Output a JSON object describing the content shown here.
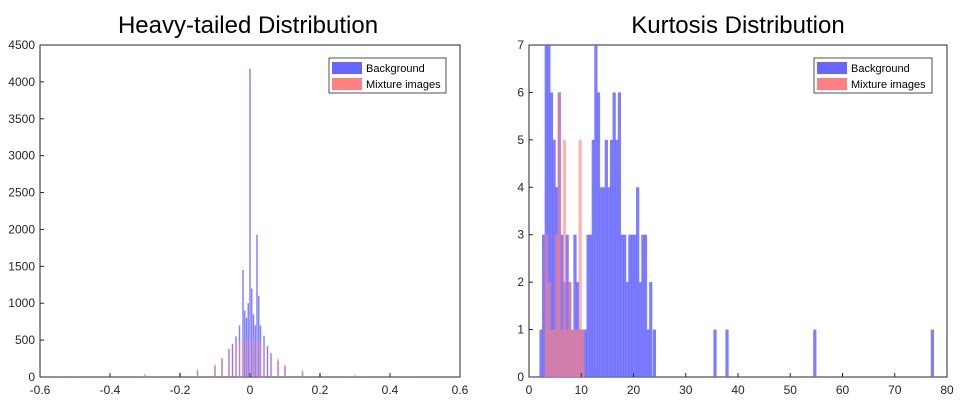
{
  "chart_data": [
    {
      "type": "bar",
      "title": "Heavy-tailed Distribution",
      "xlabel": "",
      "ylabel": "",
      "xlim": [
        -0.6,
        0.6
      ],
      "ylim": [
        0,
        4500
      ],
      "xticks": [
        -0.6,
        -0.4,
        -0.2,
        0,
        0.2,
        0.4,
        0.6
      ],
      "yticks": [
        0,
        500,
        1000,
        1500,
        2000,
        2500,
        3000,
        3500,
        4000,
        4500
      ],
      "xtick_labels": [
        "-0.6",
        "-0.4",
        "-0.2",
        "0",
        "0.2",
        "0.4",
        "0.6"
      ],
      "ytick_labels": [
        "0",
        "500",
        "1000",
        "1500",
        "2000",
        "2500",
        "3000",
        "3500",
        "4000",
        "4500"
      ],
      "grid": false,
      "legend_position": "top-right",
      "series": [
        {
          "name": "Background",
          "color": "#6666ff",
          "x": [
            -0.5,
            -0.3,
            -0.2,
            -0.15,
            -0.1,
            -0.08,
            -0.06,
            -0.05,
            -0.04,
            -0.03,
            -0.02,
            -0.015,
            -0.01,
            -0.005,
            0,
            0.005,
            0.01,
            0.015,
            0.02,
            0.025,
            0.03,
            0.04,
            0.05,
            0.06,
            0.08,
            0.1,
            0.15,
            0.2,
            0.3,
            0.45
          ],
          "values": [
            10,
            20,
            40,
            80,
            150,
            250,
            380,
            450,
            550,
            700,
            1450,
            900,
            800,
            1000,
            4180,
            1200,
            850,
            700,
            1930,
            1100,
            700,
            560,
            420,
            320,
            220,
            150,
            70,
            30,
            15,
            10
          ]
        },
        {
          "name": "Mixture images",
          "color": "#ff8080",
          "x": [
            -0.55,
            -0.4,
            -0.3,
            -0.2,
            -0.15,
            -0.1,
            -0.08,
            -0.06,
            -0.04,
            -0.03,
            -0.02,
            -0.01,
            0,
            0.01,
            0.02,
            0.03,
            0.04,
            0.06,
            0.08,
            0.1,
            0.15,
            0.2,
            0.3,
            0.4
          ],
          "values": [
            15,
            25,
            45,
            70,
            110,
            180,
            260,
            350,
            420,
            480,
            510,
            520,
            500,
            520,
            500,
            470,
            400,
            330,
            250,
            170,
            100,
            60,
            35,
            15
          ]
        }
      ]
    },
    {
      "type": "bar",
      "title": "Kurtosis Distribution",
      "xlabel": "",
      "ylabel": "",
      "xlim": [
        0,
        80
      ],
      "ylim": [
        0,
        7
      ],
      "xticks": [
        0,
        10,
        20,
        30,
        40,
        50,
        60,
        70,
        80
      ],
      "yticks": [
        0,
        1,
        2,
        3,
        4,
        5,
        6,
        7
      ],
      "xtick_labels": [
        "0",
        "10",
        "20",
        "30",
        "40",
        "50",
        "60",
        "70",
        "80"
      ],
      "ytick_labels": [
        "0",
        "1",
        "2",
        "3",
        "4",
        "5",
        "6",
        "7"
      ],
      "grid": false,
      "legend_position": "top-right",
      "series": [
        {
          "name": "Background",
          "color": "#6666ff",
          "x": [
            2.3,
            2.8,
            3.3,
            3.8,
            4.3,
            4.8,
            5.3,
            5.8,
            6.3,
            6.8,
            7.3,
            7.8,
            8.3,
            8.8,
            9.3,
            9.8,
            10.3,
            10.8,
            11.3,
            11.8,
            12.3,
            12.8,
            13.3,
            13.8,
            14.3,
            14.8,
            15.3,
            15.8,
            16.3,
            16.8,
            17.3,
            17.8,
            18.3,
            18.8,
            19.3,
            19.8,
            20.3,
            20.8,
            21.3,
            21.8,
            22.3,
            22.8,
            23.3,
            24.0,
            35.6,
            37.9,
            54.7,
            77.2
          ],
          "values": [
            1,
            3,
            7,
            7,
            6,
            5,
            4,
            6,
            3,
            2,
            3,
            2,
            1,
            3,
            2,
            1,
            1,
            1,
            3,
            3,
            5,
            7,
            6,
            4,
            4,
            5,
            4,
            5,
            6,
            5,
            6,
            3,
            3,
            2,
            3,
            3,
            3,
            4,
            2,
            3,
            3,
            1,
            2,
            1,
            1,
            1,
            1,
            1
          ]
        },
        {
          "name": "Mixture images",
          "color": "#ff8080",
          "x": [
            3.3,
            3.8,
            4.3,
            4.8,
            5.3,
            5.8,
            6.3,
            6.8,
            7.3,
            7.8,
            8.3,
            8.8,
            9.3,
            9.8,
            10.3
          ],
          "values": [
            3,
            2,
            1,
            1,
            3,
            6,
            1,
            5,
            1,
            2,
            1,
            1,
            1,
            5,
            1
          ]
        }
      ]
    }
  ]
}
